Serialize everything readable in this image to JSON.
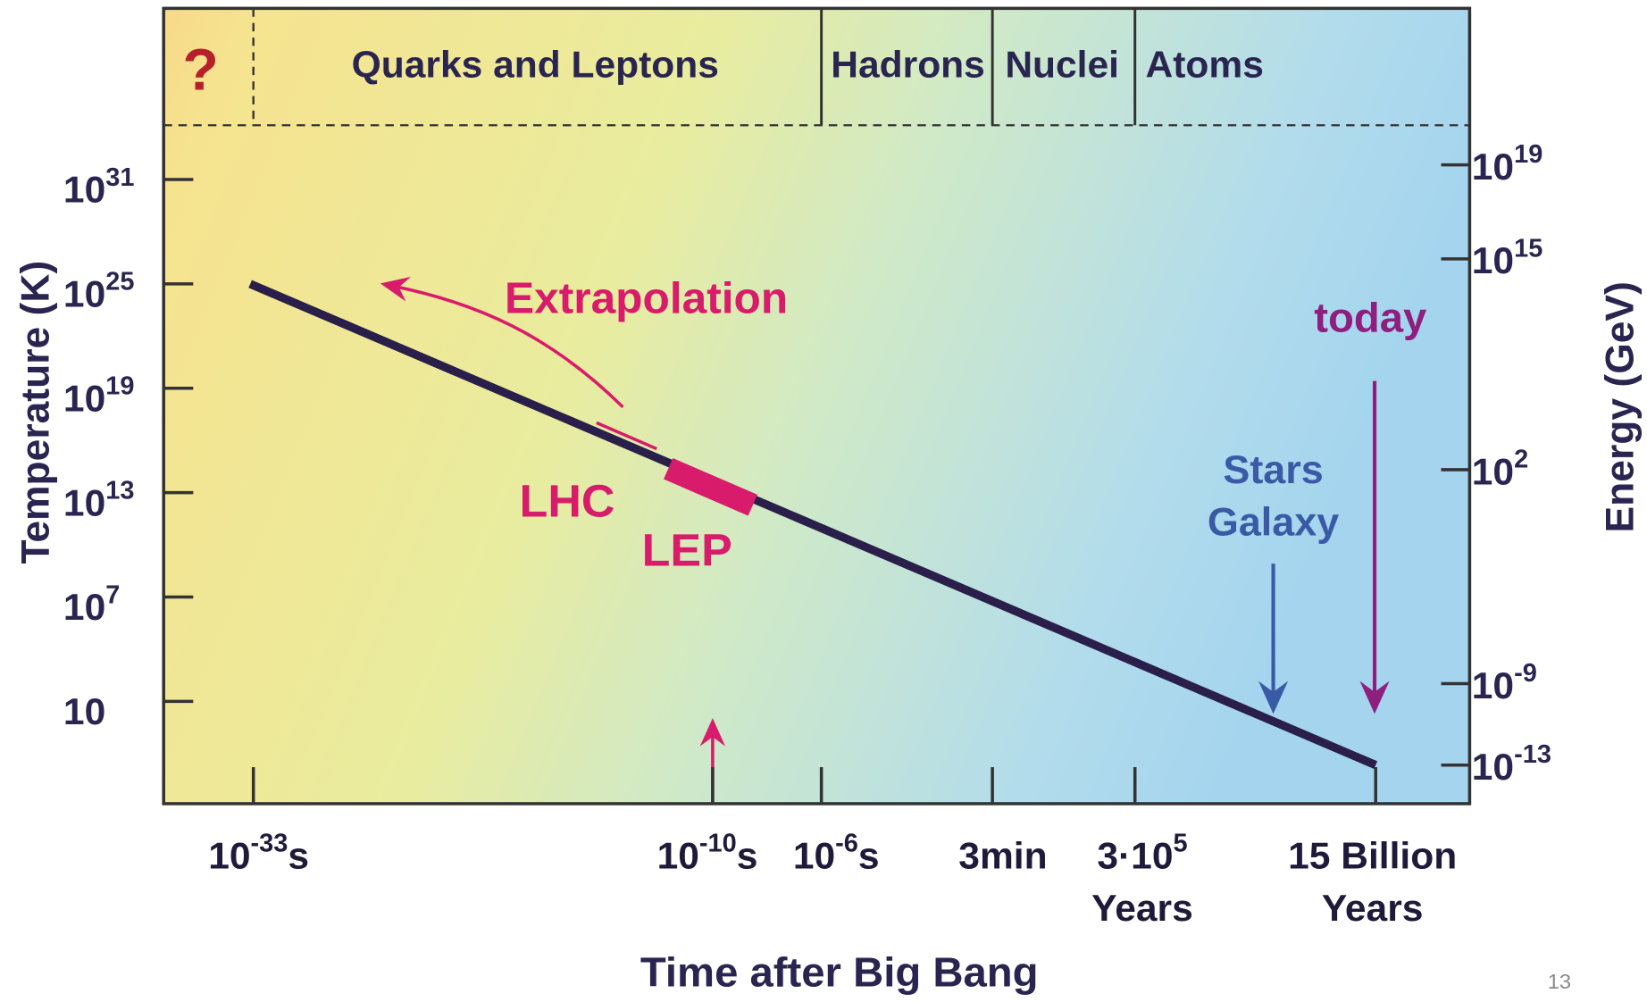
{
  "eras": [
    "?",
    "Quarks and Leptons",
    "Hadrons",
    "Nuclei",
    "Atoms"
  ],
  "left_axis": {
    "title": "Temperature (K)",
    "ticks": [
      {
        "base": "10",
        "exp": "31"
      },
      {
        "base": "10",
        "exp": "25"
      },
      {
        "base": "10",
        "exp": "19"
      },
      {
        "base": "10",
        "exp": "13"
      },
      {
        "base": "10",
        "exp": "7"
      },
      {
        "base": "10"
      }
    ]
  },
  "right_axis": {
    "title": "Energy (GeV)",
    "ticks": [
      {
        "base": "10",
        "exp": "19"
      },
      {
        "base": "10",
        "exp": "15"
      },
      {
        "base": "10",
        "exp": "2"
      },
      {
        "base": "10",
        "exp": "-9"
      },
      {
        "base": "10",
        "exp": "-13"
      }
    ]
  },
  "bottom_axis": {
    "title": "Time after Big Bang",
    "ticks": [
      {
        "base": "10",
        "exp": "-33",
        "unit": "s"
      },
      {
        "base": "10",
        "exp": "-10",
        "unit": "s"
      },
      {
        "base": "10",
        "exp": "-6",
        "unit": "s"
      },
      {
        "base": "3min"
      },
      {
        "base": "3·10",
        "exp": "5",
        "line2": "Years"
      },
      {
        "base": "15 Billion",
        "line2": "Years"
      }
    ]
  },
  "annotations": {
    "extrapolation": "Extrapolation",
    "lhc": "LHC",
    "lep": "LEP",
    "today": "today",
    "stars": [
      "Stars",
      "Galaxy"
    ]
  },
  "page_number": "13"
}
